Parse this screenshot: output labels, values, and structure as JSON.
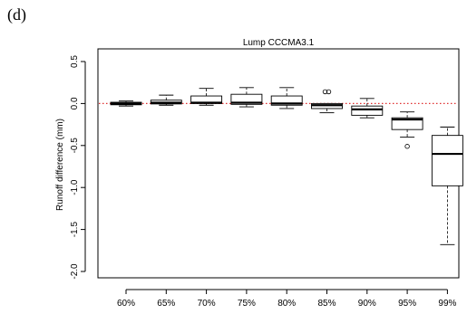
{
  "panel_label": "(d)",
  "chart_data": {
    "type": "box",
    "title": "Lump CCCMA3.1",
    "xlabel": "",
    "ylabel": "Runoff difference (mm)",
    "ylim": [
      -2.1,
      0.6
    ],
    "yticks": [
      0.5,
      0.0,
      -0.5,
      -1.0,
      -1.5,
      -2.0
    ],
    "ytick_labels": [
      "0.5",
      "0.0",
      "-0.5",
      "-1.0",
      "-1.5",
      "-2.0"
    ],
    "reference_line": {
      "y": 0.0,
      "color": "#e03030",
      "style": "dotted"
    },
    "categories": [
      "60%",
      "65%",
      "70%",
      "75%",
      "80%",
      "85%",
      "90%",
      "95%",
      "99%"
    ],
    "boxes": [
      {
        "category": "60%",
        "whisker_low": -0.03,
        "q1": -0.015,
        "median": 0.0,
        "q3": 0.015,
        "whisker_high": 0.03,
        "outliers": []
      },
      {
        "category": "65%",
        "whisker_low": -0.02,
        "q1": -0.005,
        "median": 0.01,
        "q3": 0.04,
        "whisker_high": 0.1,
        "outliers": []
      },
      {
        "category": "70%",
        "whisker_low": -0.02,
        "q1": 0.0,
        "median": 0.01,
        "q3": 0.09,
        "whisker_high": 0.18,
        "outliers": []
      },
      {
        "category": "75%",
        "whisker_low": -0.04,
        "q1": -0.01,
        "median": 0.01,
        "q3": 0.11,
        "whisker_high": 0.19,
        "outliers": []
      },
      {
        "category": "80%",
        "whisker_low": -0.06,
        "q1": -0.02,
        "median": 0.0,
        "q3": 0.09,
        "whisker_high": 0.19,
        "outliers": []
      },
      {
        "category": "85%",
        "whisker_low": -0.11,
        "q1": -0.06,
        "median": -0.02,
        "q3": 0.0,
        "whisker_high": 0.0,
        "outliers": [
          0.14,
          0.14
        ]
      },
      {
        "category": "90%",
        "whisker_low": -0.17,
        "q1": -0.14,
        "median": -0.07,
        "q3": -0.03,
        "whisker_high": 0.06,
        "outliers": []
      },
      {
        "category": "95%",
        "whisker_low": -0.4,
        "q1": -0.31,
        "median": -0.19,
        "q3": -0.17,
        "whisker_high": -0.1,
        "outliers": [
          -0.51
        ]
      },
      {
        "category": "99%",
        "whisker_low": -1.68,
        "q1": -0.98,
        "median": -0.6,
        "q3": -0.38,
        "whisker_high": -0.28,
        "outliers": []
      }
    ],
    "grid": false,
    "legend": "none"
  }
}
